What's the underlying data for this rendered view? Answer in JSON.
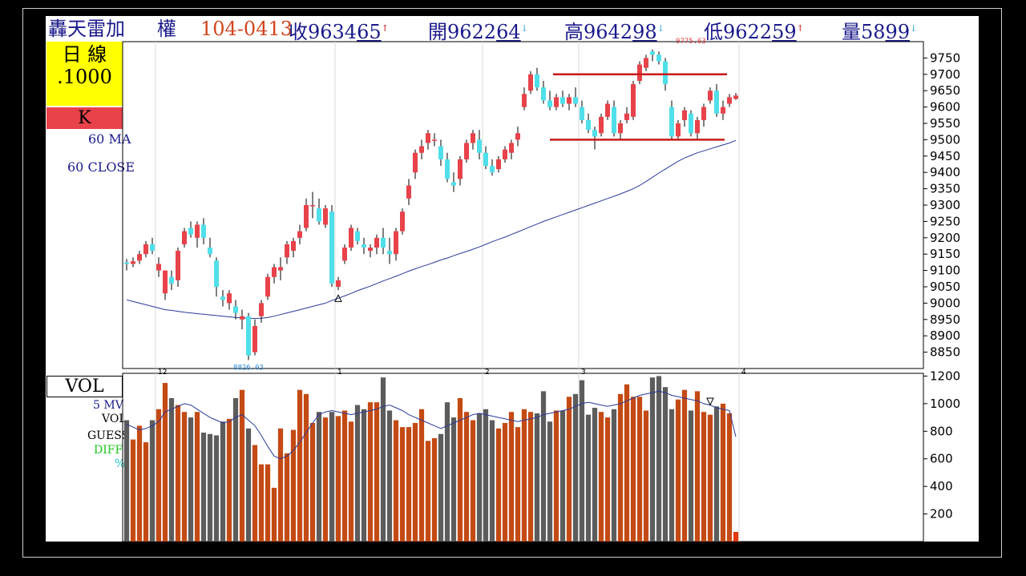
{
  "header": {
    "name": "轟天雷加",
    "market": "權",
    "date": "104-0413",
    "close_label": "收",
    "close_main": "9634",
    "close_dec": "65",
    "close_arrow": "↑",
    "open_label": "開",
    "open_main": "9622",
    "open_dec": "64",
    "open_arrow": "↓",
    "high_label": "高",
    "high_main": "9642",
    "high_dec": "98",
    "high_arrow": "↓",
    "low_label": "低",
    "low_main": "9622",
    "low_dec": "59",
    "low_arrow": "↑",
    "vol_label": "量",
    "vol_main": "58",
    "vol_dec": "99",
    "vol_arrow": "↓"
  },
  "left": {
    "period_line1": "日  線",
    "period_line2": ".1000",
    "type": "K",
    "ma_label": "60 MA",
    "close_label": "60 CLOSE",
    "vol_title": "VOL",
    "mv_label": "5 MV",
    "vol_label": "VOL",
    "guess_label": "GUESS",
    "diff_label": "DIFF",
    "pct_label": "%"
  },
  "colors": {
    "up": "#e8424a",
    "down": "#4fe0ea",
    "vol_up": "#c44a14",
    "vol_down": "#5c5c5c",
    "ma": "#2a3a9a",
    "resistance": "#c81a1a",
    "label_navy": "#1a1a8c",
    "yellow": "#ffff00",
    "redbox": "#e8424a"
  },
  "chart_data": [
    {
      "type": "candlestick",
      "title": "",
      "ylim": [
        8800,
        9800
      ],
      "y_ticks": [
        8850,
        8900,
        8950,
        9000,
        9050,
        9100,
        9150,
        9200,
        9250,
        9300,
        9350,
        9400,
        9450,
        9500,
        9550,
        9600,
        9650,
        9700,
        9750
      ],
      "month_labels": [
        {
          "label": "12",
          "bar": 5
        },
        {
          "label": "1",
          "bar": 33
        },
        {
          "label": "2",
          "bar": 56
        },
        {
          "label": "3",
          "bar": 71
        },
        {
          "label": "4",
          "bar": 96
        }
      ],
      "annotations": [
        {
          "text": "9775.63",
          "bar": 88,
          "value": 9775.63
        },
        {
          "text": "8826.03",
          "bar": 19,
          "value": 8826.03
        }
      ],
      "ohlc": [
        [
          9125,
          9135,
          9100,
          9120
        ],
        [
          9120,
          9140,
          9110,
          9128
        ],
        [
          9130,
          9160,
          9120,
          9150
        ],
        [
          9150,
          9190,
          9140,
          9180
        ],
        [
          9180,
          9200,
          9150,
          9160
        ],
        [
          9100,
          9140,
          9080,
          9120
        ],
        [
          9030,
          9090,
          9010,
          9100
        ],
        [
          9080,
          9100,
          9040,
          9060
        ],
        [
          9070,
          9170,
          9050,
          9160
        ],
        [
          9180,
          9230,
          9170,
          9220
        ],
        [
          9230,
          9250,
          9200,
          9210
        ],
        [
          9200,
          9250,
          9170,
          9240
        ],
        [
          9240,
          9260,
          9180,
          9200
        ],
        [
          9170,
          9200,
          9140,
          9150
        ],
        [
          9130,
          9140,
          9020,
          9050
        ],
        [
          9020,
          9040,
          8990,
          9010
        ],
        [
          9000,
          9040,
          8980,
          9030
        ],
        [
          8990,
          9010,
          8950,
          8970
        ],
        [
          8950,
          8980,
          8920,
          8960
        ],
        [
          8960,
          8970,
          8826,
          8840
        ],
        [
          8850,
          8950,
          8840,
          8930
        ],
        [
          8960,
          9010,
          8940,
          9000
        ],
        [
          9020,
          9090,
          9010,
          9080
        ],
        [
          9080,
          9120,
          9060,
          9110
        ],
        [
          9100,
          9140,
          9070,
          9110
        ],
        [
          9140,
          9190,
          9120,
          9180
        ],
        [
          9160,
          9200,
          9140,
          9190
        ],
        [
          9200,
          9240,
          9180,
          9220
        ],
        [
          9230,
          9320,
          9220,
          9300
        ],
        [
          9300,
          9340,
          9260,
          9300
        ],
        [
          9290,
          9320,
          9240,
          9250
        ],
        [
          9240,
          9300,
          9230,
          9290
        ],
        [
          9280,
          9300,
          9050,
          9060
        ],
        [
          9050,
          9080,
          9040,
          9070
        ],
        [
          9130,
          9180,
          9120,
          9170
        ],
        [
          9170,
          9240,
          9160,
          9230
        ],
        [
          9220,
          9230,
          9180,
          9190
        ],
        [
          9180,
          9200,
          9150,
          9170
        ],
        [
          9160,
          9180,
          9140,
          9170
        ],
        [
          9170,
          9210,
          9150,
          9200
        ],
        [
          9200,
          9230,
          9150,
          9170
        ],
        [
          9160,
          9200,
          9120,
          9150
        ],
        [
          9150,
          9230,
          9130,
          9220
        ],
        [
          9220,
          9290,
          9210,
          9280
        ],
        [
          9320,
          9380,
          9300,
          9360
        ],
        [
          9400,
          9470,
          9380,
          9460
        ],
        [
          9460,
          9500,
          9440,
          9480
        ],
        [
          9490,
          9530,
          9470,
          9520
        ],
        [
          9500,
          9520,
          9480,
          9500
        ],
        [
          9480,
          9500,
          9420,
          9440
        ],
        [
          9440,
          9460,
          9370,
          9380
        ],
        [
          9370,
          9400,
          9340,
          9360
        ],
        [
          9380,
          9450,
          9360,
          9440
        ],
        [
          9440,
          9500,
          9430,
          9490
        ],
        [
          9490,
          9530,
          9470,
          9520
        ],
        [
          9500,
          9530,
          9440,
          9460
        ],
        [
          9460,
          9480,
          9410,
          9420
        ],
        [
          9420,
          9440,
          9390,
          9400
        ],
        [
          9410,
          9450,
          9400,
          9440
        ],
        [
          9440,
          9480,
          9430,
          9470
        ],
        [
          9460,
          9500,
          9440,
          9490
        ],
        [
          9500,
          9540,
          9480,
          9520
        ],
        [
          9600,
          9660,
          9590,
          9640
        ],
        [
          9650,
          9710,
          9640,
          9700
        ],
        [
          9700,
          9720,
          9650,
          9660
        ],
        [
          9660,
          9680,
          9610,
          9620
        ],
        [
          9620,
          9650,
          9590,
          9600
        ],
        [
          9600,
          9640,
          9590,
          9630
        ],
        [
          9630,
          9650,
          9600,
          9610
        ],
        [
          9610,
          9640,
          9590,
          9630
        ],
        [
          9630,
          9660,
          9600,
          9610
        ],
        [
          9600,
          9620,
          9550,
          9560
        ],
        [
          9560,
          9580,
          9520,
          9530
        ],
        [
          9530,
          9540,
          9470,
          9510
        ],
        [
          9520,
          9580,
          9510,
          9570
        ],
        [
          9570,
          9620,
          9560,
          9610
        ],
        [
          9600,
          9620,
          9510,
          9520
        ],
        [
          9520,
          9560,
          9500,
          9550
        ],
        [
          9560,
          9600,
          9550,
          9580
        ],
        [
          9570,
          9680,
          9560,
          9670
        ],
        [
          9680,
          9740,
          9670,
          9730
        ],
        [
          9720,
          9760,
          9710,
          9750
        ],
        [
          9770,
          9776,
          9740,
          9760
        ],
        [
          9760,
          9770,
          9730,
          9740
        ],
        [
          9740,
          9750,
          9650,
          9670
        ],
        [
          9600,
          9620,
          9500,
          9510
        ],
        [
          9510,
          9560,
          9500,
          9550
        ],
        [
          9560,
          9600,
          9540,
          9590
        ],
        [
          9580,
          9590,
          9510,
          9520
        ],
        [
          9520,
          9570,
          9500,
          9560
        ],
        [
          9560,
          9610,
          9540,
          9600
        ],
        [
          9620,
          9660,
          9610,
          9650
        ],
        [
          9650,
          9670,
          9570,
          9580
        ],
        [
          9580,
          9620,
          9560,
          9600
        ],
        [
          9610,
          9640,
          9600,
          9630
        ],
        [
          9625,
          9643,
          9622,
          9635
        ]
      ],
      "ma60": [
        9010,
        9005,
        9000,
        8995,
        8990,
        8985,
        8980,
        8978,
        8975,
        8972,
        8970,
        8968,
        8966,
        8964,
        8962,
        8960,
        8958,
        8956,
        8955,
        8954,
        8953,
        8954,
        8956,
        8960,
        8965,
        8970,
        8975,
        8980,
        8985,
        8990,
        8995,
        9000,
        9008,
        9015,
        9022,
        9030,
        9038,
        9045,
        9052,
        9060,
        9068,
        9075,
        9082,
        9090,
        9098,
        9105,
        9112,
        9118,
        9125,
        9132,
        9138,
        9145,
        9152,
        9158,
        9165,
        9172,
        9180,
        9188,
        9195,
        9202,
        9210,
        9218,
        9226,
        9234,
        9242,
        9250,
        9257,
        9264,
        9271,
        9278,
        9285,
        9292,
        9299,
        9306,
        9313,
        9320,
        9327,
        9334,
        9342,
        9350,
        9360,
        9372,
        9385,
        9398,
        9410,
        9422,
        9434,
        9444,
        9452,
        9460,
        9466,
        9472,
        9478,
        9484,
        9490,
        9498
      ],
      "support_line": 9500,
      "resistance_line": 9700
    },
    {
      "type": "bar",
      "title": "VOL",
      "ylim": [
        0,
        1220
      ],
      "y_ticks": [
        200,
        400,
        600,
        800,
        1000,
        1200
      ],
      "volume": [
        880,
        740,
        840,
        720,
        880,
        960,
        1150,
        1040,
        990,
        940,
        900,
        940,
        790,
        780,
        770,
        870,
        890,
        1040,
        1100,
        820,
        700,
        560,
        560,
        390,
        820,
        640,
        810,
        1100,
        1070,
        860,
        940,
        900,
        940,
        910,
        950,
        870,
        990,
        960,
        1010,
        1010,
        1190,
        950,
        880,
        830,
        830,
        860,
        960,
        730,
        750,
        780,
        1010,
        900,
        1040,
        940,
        880,
        930,
        960,
        880,
        820,
        860,
        940,
        830,
        960,
        940,
        930,
        1090,
        870,
        950,
        950,
        1050,
        1070,
        1170,
        920,
        970,
        940,
        900,
        960,
        1070,
        1140,
        1050,
        1050,
        950,
        1190,
        1200,
        1120,
        960,
        1030,
        1100,
        950,
        1090,
        940,
        920,
        980,
        1000,
        930,
        70
      ],
      "mv5": [
        850,
        830,
        810,
        820,
        840,
        870,
        940,
        960,
        980,
        1000,
        990,
        960,
        930,
        900,
        880,
        860,
        870,
        900,
        920,
        880,
        840,
        770,
        690,
        620,
        600,
        620,
        660,
        720,
        790,
        860,
        920,
        940,
        950,
        940,
        930,
        920,
        930,
        940,
        950,
        960,
        980,
        990,
        970,
        950,
        920,
        900,
        880,
        860,
        840,
        820,
        840,
        860,
        880,
        900,
        920,
        930,
        920,
        910,
        900,
        890,
        880,
        870,
        880,
        890,
        900,
        920,
        930,
        940,
        950,
        960,
        980,
        1000,
        1010,
        1000,
        990,
        980,
        990,
        1000,
        1020,
        1040,
        1060,
        1070,
        1080,
        1090,
        1080,
        1060,
        1050,
        1040,
        1030,
        1020,
        1000,
        990,
        970,
        960,
        950,
        760
      ]
    }
  ]
}
